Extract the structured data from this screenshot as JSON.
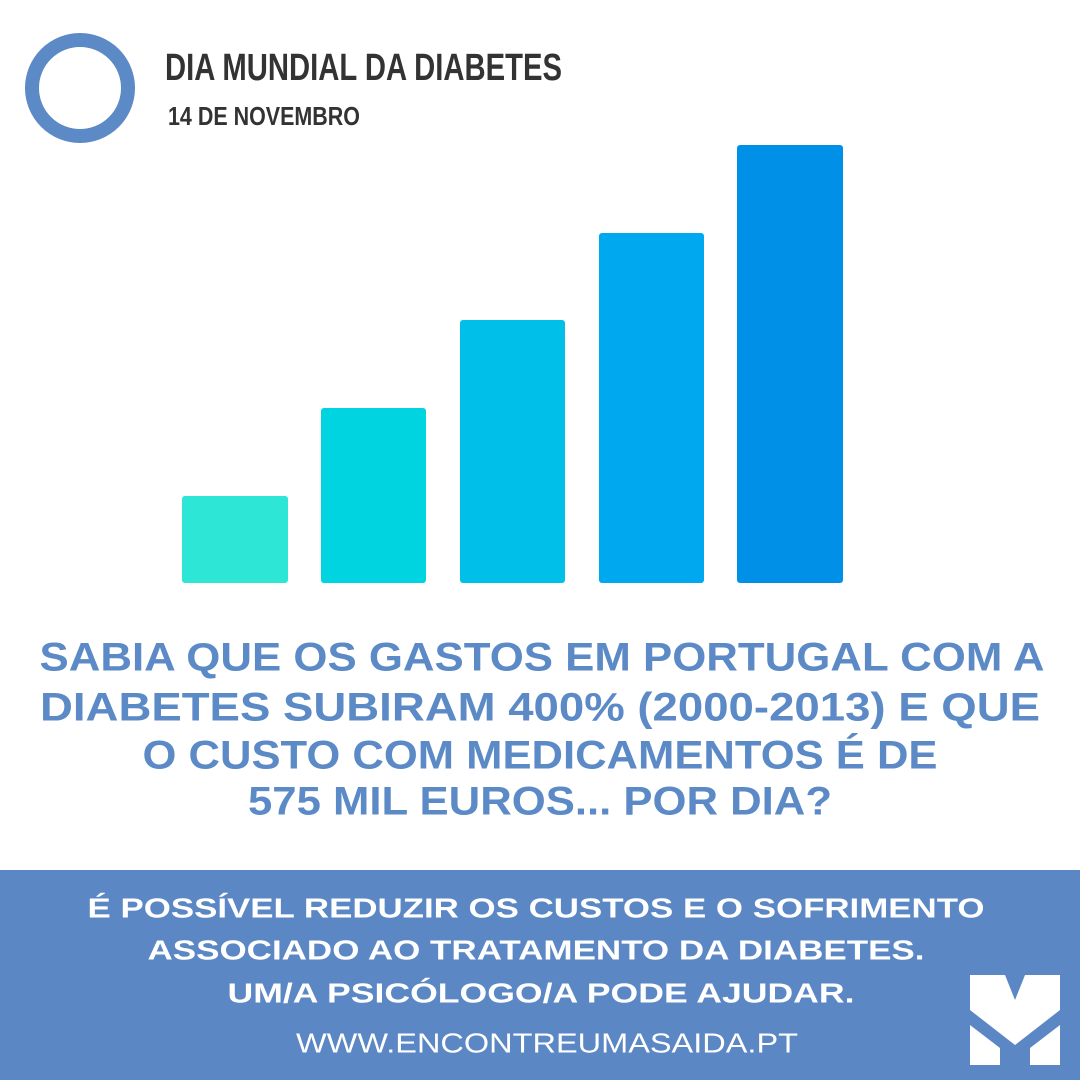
{
  "header": {
    "title": "DIA MUNDIAL DA DIABETES",
    "subtitle": "14 DE NOVEMBRO"
  },
  "headline": {
    "lines": [
      "SABIA QUE OS GASTOS EM PORTUGAL COM A",
      "DIABETES SUBIRAM 400% (2000-2013) E QUE",
      "O CUSTO COM MEDICAMENTOS É DE",
      "575 MIL EUROS... POR DIA?"
    ]
  },
  "footer": {
    "lines": [
      "É POSSÍVEL REDUZIR OS CUSTOS E O SOFRIMENTO",
      "ASSOCIADO AO TRATAMENTO DA DIABETES.",
      "UM/A PSICÓLOGO/A PODE AJUDAR."
    ],
    "url": "WWW.ENCONTREUMASAIDA.PT"
  }
}
